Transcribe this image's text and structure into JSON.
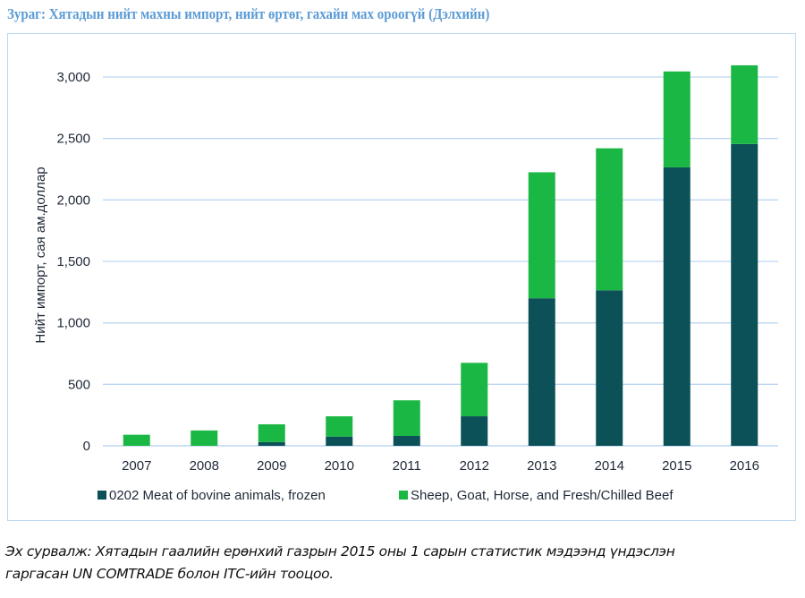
{
  "figure": {
    "title": "Зураг: Хятадын нийт махны импорт, нийт өртөг, гахайн мах ороогүй (Дэлхийн)",
    "source_line1": "Эх сурвалж: Хятадын гаалийн ерөнхий газрын 2015 оны 1 сарын статистик мэдээнд үндэслэн",
    "source_line2": "гаргасан UN COMTRADE болон ITC-ийн тооцоо."
  },
  "chart_data": {
    "type": "bar",
    "stacked": true,
    "title": "",
    "xlabel": "",
    "ylabel": "Нийт импорт, сая ам.доллар",
    "ylim": [
      0,
      3000
    ],
    "yticks": [
      0,
      500,
      1000,
      1500,
      2000,
      2500,
      3000
    ],
    "ytick_labels": [
      "0",
      "500",
      "1,000",
      "1,500",
      "2,000",
      "2,500",
      "3,000"
    ],
    "grid": true,
    "legend_position": "bottom",
    "categories": [
      "2007",
      "2008",
      "2009",
      "2010",
      "2011",
      "2012",
      "2013",
      "2014",
      "2015",
      "2016"
    ],
    "series": [
      {
        "name": "0202 Meat of bovine animals, frozen",
        "color": "#0b5157",
        "values": [
          0,
          0,
          30,
          75,
          80,
          240,
          1200,
          1265,
          2265,
          2455
        ]
      },
      {
        "name": "Sheep, Goat, Horse, and Fresh/Chilled Beef",
        "color": "#1bb744",
        "values": [
          90,
          125,
          145,
          165,
          290,
          435,
          1025,
          1155,
          780,
          640
        ]
      }
    ],
    "gridline_color": "#bcd7f2"
  }
}
